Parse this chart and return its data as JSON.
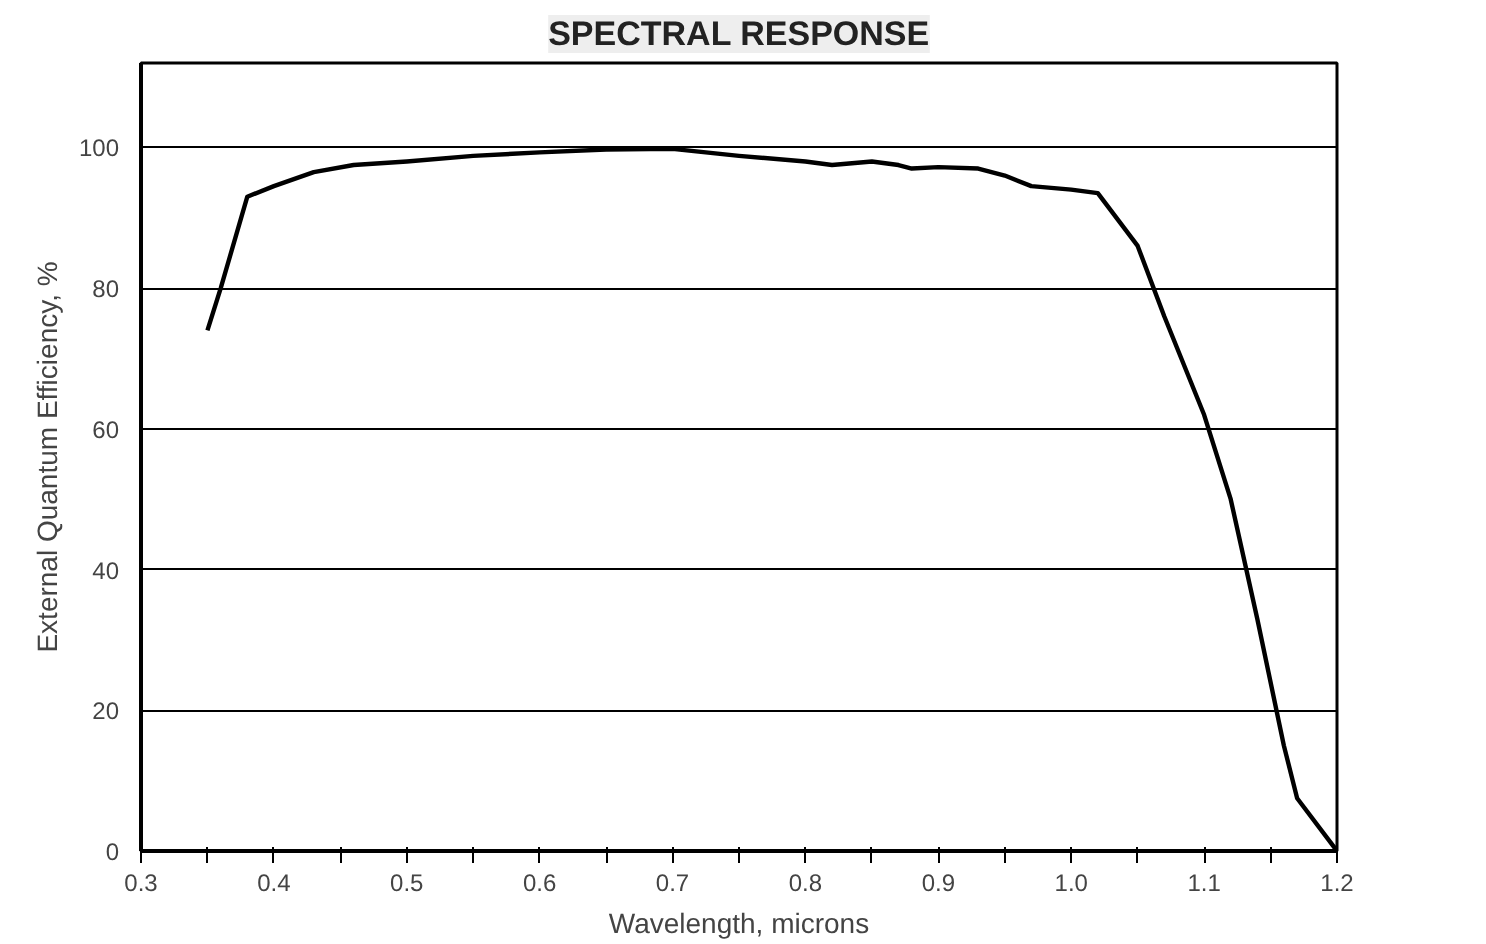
{
  "chart_data": {
    "type": "line",
    "title": "SPECTRAL RESPONSE",
    "xlabel": "Wavelength, microns",
    "ylabel": "External Quantum Efficiency, %",
    "x": [
      0.35,
      0.36,
      0.38,
      0.4,
      0.43,
      0.46,
      0.5,
      0.55,
      0.6,
      0.65,
      0.7,
      0.75,
      0.8,
      0.82,
      0.85,
      0.87,
      0.88,
      0.9,
      0.93,
      0.95,
      0.97,
      1.0,
      1.02,
      1.05,
      1.07,
      1.1,
      1.12,
      1.14,
      1.16,
      1.17,
      1.2
    ],
    "series": [
      {
        "color": "#000000",
        "values": [
          74,
          80,
          93,
          94.5,
          96.5,
          97.5,
          98,
          98.8,
          99.3,
          99.7,
          99.8,
          98.8,
          98,
          97.5,
          98,
          97.5,
          97,
          97.2,
          97,
          96,
          94.5,
          94,
          93.5,
          86,
          76,
          62,
          50,
          33,
          15,
          7.5,
          0
        ]
      }
    ],
    "xlim": [
      0.3,
      1.2
    ],
    "ylim": [
      0,
      112
    ],
    "xticks": [
      0.3,
      {
        "value": 0.35,
        "label": null
      },
      0.4,
      {
        "value": 0.45,
        "label": null
      },
      0.5,
      {
        "value": 0.55,
        "label": null
      },
      0.6,
      {
        "value": 0.65,
        "label": null
      },
      0.7,
      {
        "value": 0.75,
        "label": null
      },
      0.8,
      {
        "value": 0.85,
        "label": null
      },
      0.9,
      {
        "value": 0.95,
        "label": null
      },
      {
        "value": 1,
        "label": "1.0"
      },
      {
        "value": 1.05,
        "label": null
      },
      1.1,
      {
        "value": 1.15,
        "label": null
      },
      1.2
    ],
    "yticks": [
      0,
      20,
      40,
      60,
      80,
      100
    ],
    "grid": "y",
    "line_style": "solid"
  }
}
